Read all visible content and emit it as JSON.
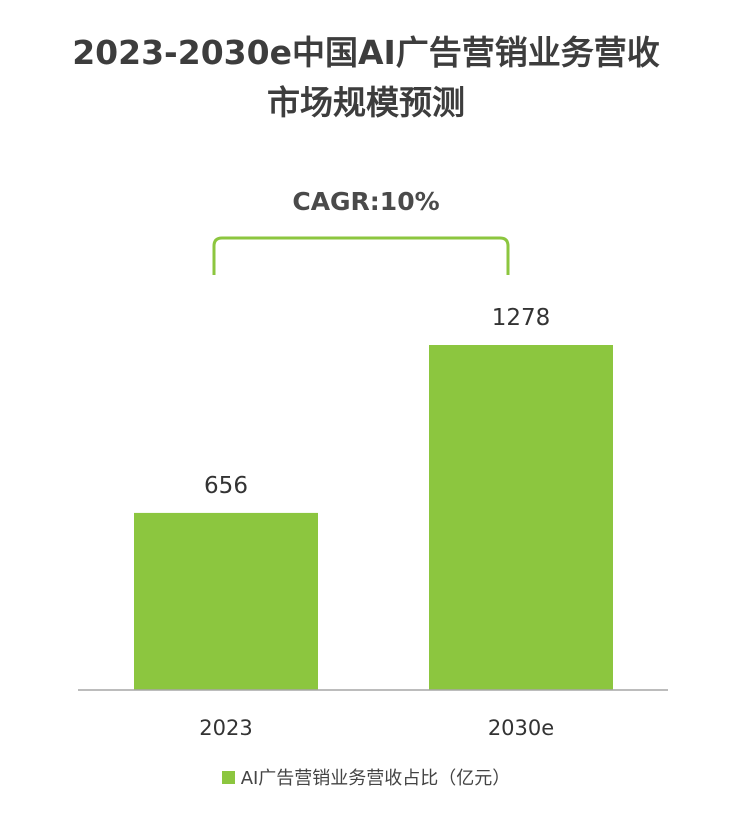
{
  "chart_data": {
    "type": "bar",
    "title_line1": "2023-2030e中国AI广告营销业务营收",
    "title_line2": "市场规模预测",
    "categories": [
      "2023",
      "2030e"
    ],
    "series": [
      {
        "name": "AI广告营销业务营收占比（亿元）",
        "values": [
          656,
          1278
        ],
        "color": "#8cc63f"
      }
    ],
    "data_labels": [
      "656",
      "1278"
    ],
    "annotation": "CAGR:10%",
    "ylim": [
      0,
      1278
    ],
    "grid": false,
    "legend_position": "bottom"
  },
  "colors": {
    "bar": "#8cc63f",
    "bracket": "#8cc63f",
    "axis": "#a6a6a6",
    "title": "#3d3d3d"
  }
}
